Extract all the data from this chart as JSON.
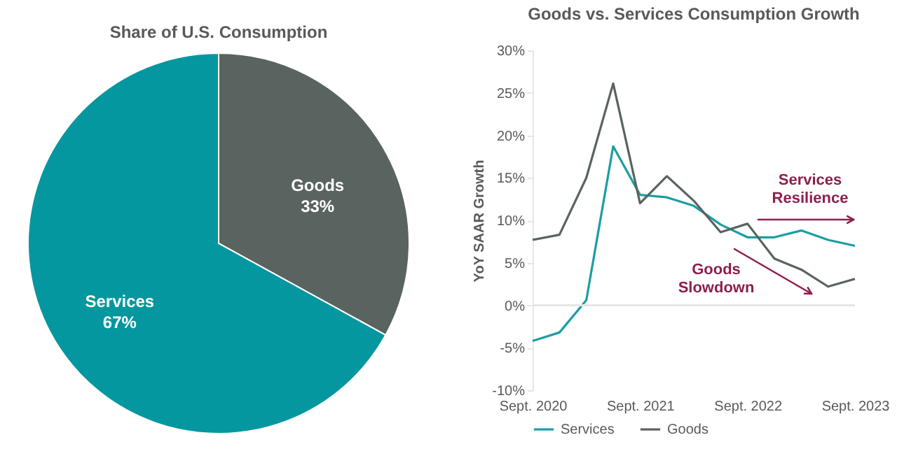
{
  "chart_data": [
    {
      "type": "pie",
      "title": "Share of U.S. Consumption",
      "categories": [
        "Goods",
        "Services"
      ],
      "values": [
        33,
        67
      ],
      "colors": [
        "#59635f",
        "#0597a0"
      ],
      "value_labels": [
        "33%",
        "67%"
      ]
    },
    {
      "type": "line",
      "title": "Goods vs. Services Consumption Growth",
      "ylabel": "YoY SAAR Growth",
      "categories": [
        "Sept. 2020",
        null,
        null,
        null,
        "Sept. 2021",
        null,
        null,
        null,
        "Sept. 2022",
        null,
        null,
        null,
        "Sept. 2023"
      ],
      "series": [
        {
          "name": "Services",
          "color": "#1a9ea3",
          "values": [
            -4.2,
            -3.2,
            0.6,
            18.7,
            13.0,
            12.7,
            11.7,
            9.5,
            8.0,
            8.0,
            8.8,
            7.7,
            7.0
          ]
        },
        {
          "name": "Goods",
          "color": "#59635f",
          "values": [
            7.7,
            8.3,
            15.0,
            26.1,
            12.0,
            15.2,
            12.3,
            8.6,
            9.6,
            5.5,
            4.2,
            2.2,
            3.1
          ]
        }
      ],
      "ylim": [
        -10,
        30
      ],
      "yticks": [
        {
          "value": -10,
          "label": "-10%"
        },
        {
          "value": -5,
          "label": "-5%"
        },
        {
          "value": 0,
          "label": "0%"
        },
        {
          "value": 5,
          "label": "5%"
        },
        {
          "value": 10,
          "label": "10%"
        },
        {
          "value": 15,
          "label": "15%"
        },
        {
          "value": 20,
          "label": "20%"
        },
        {
          "value": 25,
          "label": "25%"
        },
        {
          "value": 30,
          "label": "30%"
        }
      ],
      "ref_lines": [
        {
          "axis": "y",
          "value": 0,
          "color": "#e6e6e6"
        }
      ],
      "annotations": [
        "Services Resilience",
        "Goods Slowdown"
      ],
      "legend": "bottom",
      "grid": false,
      "marker": "none",
      "line_style": "solid"
    }
  ]
}
